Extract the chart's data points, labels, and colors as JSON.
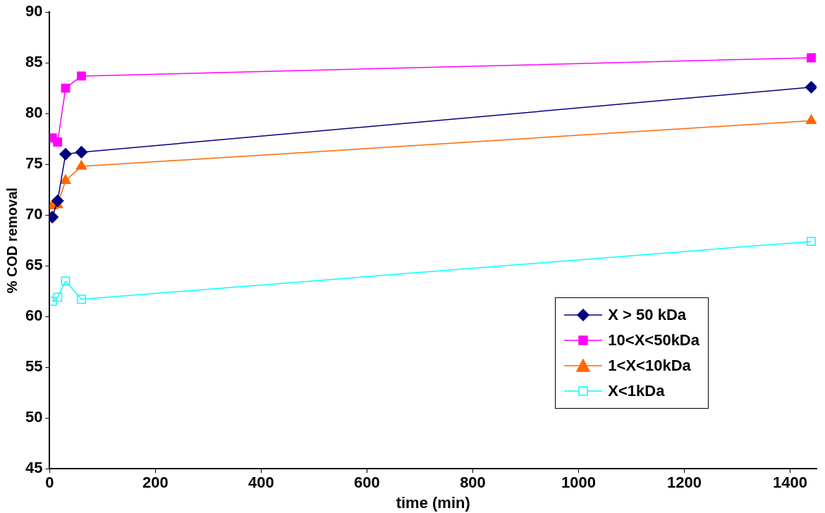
{
  "chart_data": {
    "type": "line",
    "xlabel": "time (min)",
    "ylabel": "% COD removal",
    "xlim": [
      0,
      1450
    ],
    "xticks": [
      0,
      200,
      400,
      600,
      800,
      1000,
      1200,
      1400
    ],
    "ylim": [
      45,
      90
    ],
    "yticks": [
      45,
      50,
      55,
      60,
      65,
      70,
      75,
      80,
      85,
      90
    ],
    "grid": false,
    "legend": "bottom right",
    "series": [
      {
        "name": "X > 50 kDa",
        "color": "#000080",
        "marker": "diamond",
        "x": [
          5,
          15,
          30,
          60,
          1440
        ],
        "values": [
          69.8,
          71.4,
          76.0,
          76.2,
          82.6
        ]
      },
      {
        "name": "10<X<50kDa",
        "color": "#ff00ff",
        "marker": "square",
        "x": [
          5,
          15,
          30,
          60,
          1440
        ],
        "values": [
          77.6,
          77.2,
          82.5,
          83.7,
          85.5
        ]
      },
      {
        "name": "1<X<10kDa",
        "color": "#ff6600",
        "marker": "triangle",
        "x": [
          5,
          15,
          30,
          60,
          1440
        ],
        "values": [
          70.9,
          71.0,
          73.4,
          74.8,
          79.3
        ]
      },
      {
        "name": "X<1kDa",
        "color": "#00ffff",
        "marker": "square",
        "x": [
          5,
          15,
          30,
          60,
          1440
        ],
        "values": [
          61.5,
          61.9,
          63.5,
          61.7,
          67.4
        ]
      }
    ]
  }
}
